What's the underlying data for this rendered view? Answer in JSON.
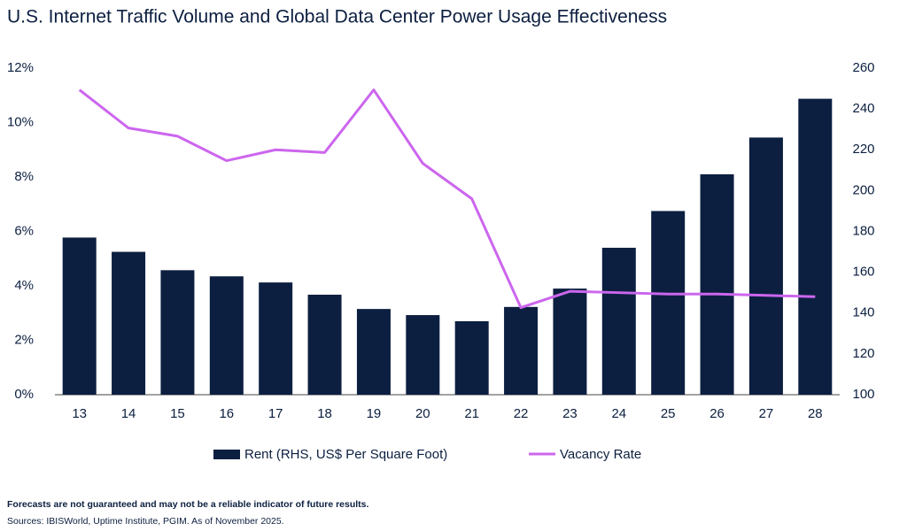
{
  "chart_data": {
    "type": "bar_line",
    "title": "U.S. Internet Traffic Volume and Global Data Center Power Usage Effectiveness",
    "categories": [
      "13",
      "14",
      "15",
      "16",
      "17",
      "18",
      "19",
      "20",
      "21",
      "22",
      "23",
      "24",
      "25",
      "26",
      "27",
      "28"
    ],
    "series": [
      {
        "name": "Rent (RHS, US$ Per Square Foot)",
        "type": "bar",
        "axis": "y2",
        "color": "#0c1f40",
        "values": [
          177,
          170,
          161,
          158,
          155,
          149,
          142,
          139,
          136,
          143,
          152,
          172,
          190,
          208,
          226,
          245
        ]
      },
      {
        "name": "Vacancy Rate",
        "type": "line",
        "axis": "y",
        "color": "#cc66ee",
        "values": [
          11.2,
          9.8,
          9.5,
          8.6,
          9.0,
          8.9,
          11.2,
          8.5,
          7.2,
          3.2,
          3.8,
          3.75,
          3.7,
          3.7,
          3.65,
          3.6
        ]
      }
    ],
    "ylim": [
      0,
      12
    ],
    "yticks": [
      {
        "value": 0,
        "label": "0%"
      },
      {
        "value": 2,
        "label": "2%"
      },
      {
        "value": 4,
        "label": "4%"
      },
      {
        "value": 6,
        "label": "6%"
      },
      {
        "value": 8,
        "label": "8%"
      },
      {
        "value": 10,
        "label": "10%"
      },
      {
        "value": 12,
        "label": "12%"
      }
    ],
    "y2lim": [
      100,
      260
    ],
    "y2ticks": [
      100,
      120,
      140,
      160,
      180,
      200,
      220,
      240,
      260
    ],
    "grid": false,
    "legend": "bottom",
    "footnote": "Forecasts are not guaranteed and may not be a reliable indicator of future results.",
    "source": "Sources: IBISWorld, Uptime Institute, PGIM.  As of November 2025."
  }
}
